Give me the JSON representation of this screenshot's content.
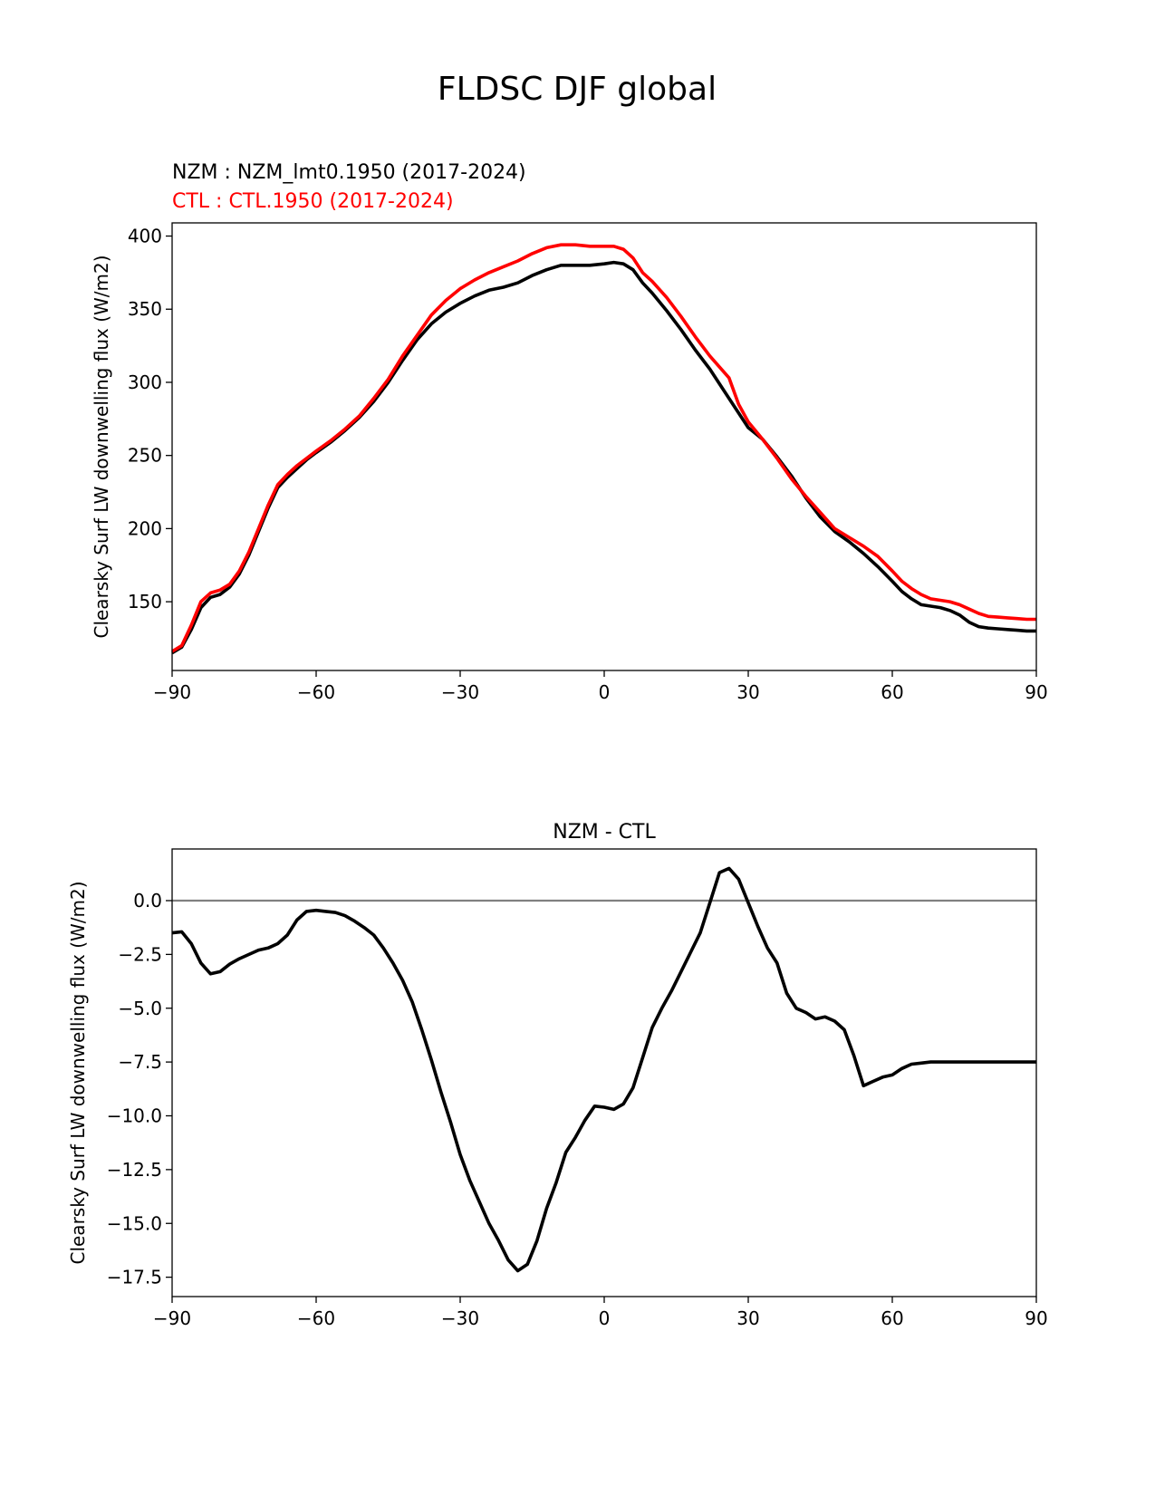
{
  "figure": {
    "suptitle": "FLDSC DJF global"
  },
  "chart_data": [
    {
      "type": "line",
      "title": "",
      "legend": [
        {
          "label": "NZM  : NZM_lmt0.1950 (2017-2024)",
          "color": "#000000"
        },
        {
          "label": "CTL : CTL.1950 (2017-2024)",
          "color": "#ff0000"
        }
      ],
      "xlabel": "",
      "ylabel": "Clearsky Surf LW downwelling flux (W/m2)",
      "xlim": [
        -90,
        90
      ],
      "ylim": [
        103,
        409
      ],
      "xticks": [
        -90,
        -60,
        -30,
        0,
        30,
        60,
        90
      ],
      "xtick_labels": [
        "−90",
        "−60",
        "−30",
        "0",
        "30",
        "60",
        "90"
      ],
      "yticks": [
        150,
        200,
        250,
        300,
        350,
        400
      ],
      "ytick_labels": [
        "150",
        "200",
        "250",
        "300",
        "350",
        "400"
      ],
      "grid": false,
      "series": [
        {
          "name": "NZM",
          "color": "#000000",
          "x": [
            -90,
            -88,
            -86,
            -84,
            -82,
            -80,
            -78,
            -76,
            -74,
            -72,
            -70,
            -68,
            -66,
            -64,
            -62,
            -60,
            -57,
            -54,
            -51,
            -48,
            -45,
            -42,
            -39,
            -36,
            -33,
            -30,
            -27,
            -24,
            -21,
            -18,
            -15,
            -12,
            -9,
            -6,
            -3,
            0,
            2,
            4,
            6,
            8,
            10,
            13,
            16,
            19,
            22,
            26,
            28,
            30,
            33,
            36,
            39,
            42,
            45,
            48,
            51,
            54,
            57,
            60,
            62,
            64,
            66,
            68,
            70,
            72,
            74,
            76,
            78,
            80,
            82,
            84,
            86,
            88,
            90
          ],
          "y": [
            115,
            119,
            131,
            146,
            153,
            155,
            160,
            169,
            182,
            198,
            214,
            228,
            235,
            241,
            247,
            252,
            259,
            267,
            276,
            287,
            300,
            315,
            329,
            340,
            348,
            354,
            359,
            363,
            365,
            368,
            373,
            377,
            380,
            380,
            380,
            381,
            382,
            381,
            377,
            368,
            361,
            349,
            336,
            322,
            309,
            289,
            279,
            269,
            261,
            249,
            236,
            221,
            208,
            198,
            191,
            183,
            174,
            164,
            157,
            152,
            148,
            147,
            146,
            144,
            141,
            136,
            133,
            132,
            131.5,
            131,
            130.5,
            130,
            130
          ]
        },
        {
          "name": "CTL",
          "color": "#ff0000",
          "x": [
            -90,
            -88,
            -86,
            -84,
            -82,
            -80,
            -78,
            -76,
            -74,
            -72,
            -70,
            -68,
            -66,
            -64,
            -62,
            -60,
            -57,
            -54,
            -51,
            -48,
            -45,
            -42,
            -39,
            -36,
            -33,
            -30,
            -27,
            -24,
            -21,
            -18,
            -15,
            -12,
            -9,
            -6,
            -3,
            0,
            2,
            4,
            6,
            8,
            10,
            13,
            16,
            19,
            22,
            26,
            28,
            30,
            33,
            36,
            39,
            42,
            45,
            48,
            51,
            54,
            57,
            60,
            62,
            64,
            66,
            68,
            70,
            72,
            74,
            76,
            78,
            80,
            82,
            84,
            86,
            88,
            90
          ],
          "y": [
            116,
            120,
            134,
            150,
            156,
            158,
            162,
            171,
            184,
            200,
            216,
            230,
            237,
            243,
            248,
            253,
            260,
            268,
            277,
            289,
            302,
            318,
            332,
            346,
            356,
            364,
            370,
            375,
            379,
            383,
            388,
            392,
            394,
            394,
            393,
            393,
            393,
            391,
            385,
            375,
            369,
            358,
            345,
            331,
            318,
            303,
            285,
            273,
            261,
            248,
            234,
            222,
            211,
            200,
            194,
            188,
            181,
            171,
            164,
            159,
            155,
            152,
            151,
            150,
            148,
            145,
            142,
            140,
            139.5,
            139,
            138.5,
            138,
            138
          ]
        }
      ]
    },
    {
      "type": "line",
      "title": "NZM - CTL",
      "xlabel": "",
      "ylabel": "Clearsky Surf LW downwelling flux (W/m2)",
      "xlim": [
        -90,
        90
      ],
      "ylim": [
        -18.4,
        2.4
      ],
      "xticks": [
        -90,
        -60,
        -30,
        0,
        30,
        60,
        90
      ],
      "xtick_labels": [
        "−90",
        "−60",
        "−30",
        "0",
        "30",
        "60",
        "90"
      ],
      "yticks": [
        -17.5,
        -15.0,
        -12.5,
        -10.0,
        -7.5,
        -5.0,
        -2.5,
        0.0
      ],
      "ytick_labels": [
        "−17.5",
        "−15.0",
        "−12.5",
        "−10.0",
        "−7.5",
        "−5.0",
        "−2.5",
        "0.0"
      ],
      "grid": false,
      "reference_line": {
        "y": 0,
        "color": "#808080"
      },
      "series": [
        {
          "name": "NZM - CTL",
          "color": "#000000",
          "x": [
            -90,
            -88,
            -86,
            -84,
            -82,
            -80,
            -78,
            -76,
            -74,
            -72,
            -70,
            -68,
            -66,
            -64,
            -62,
            -60,
            -58,
            -56,
            -54,
            -52,
            -50,
            -48,
            -46,
            -44,
            -42,
            -40,
            -38,
            -36,
            -34,
            -32,
            -30,
            -28,
            -26,
            -24,
            -22,
            -20,
            -18,
            -16,
            -14,
            -12,
            -10,
            -8,
            -6,
            -4,
            -2,
            0,
            2,
            4,
            6,
            8,
            10,
            12,
            14,
            16,
            18,
            20,
            22,
            24,
            26,
            28,
            30,
            32,
            34,
            36,
            38,
            40,
            42,
            44,
            46,
            48,
            50,
            52,
            54,
            56,
            58,
            60,
            62,
            64,
            66,
            68,
            70,
            72,
            74,
            76,
            78,
            80,
            82,
            84,
            86,
            88,
            90
          ],
          "y": [
            -1.5,
            -1.45,
            -2.0,
            -2.9,
            -3.4,
            -3.3,
            -2.95,
            -2.7,
            -2.5,
            -2.3,
            -2.2,
            -2.0,
            -1.6,
            -0.9,
            -0.5,
            -0.45,
            -0.5,
            -0.55,
            -0.7,
            -0.95,
            -1.25,
            -1.6,
            -2.2,
            -2.9,
            -3.7,
            -4.7,
            -6.0,
            -7.4,
            -8.9,
            -10.3,
            -11.8,
            -13.0,
            -14.0,
            -15.0,
            -15.8,
            -16.7,
            -17.2,
            -16.9,
            -15.8,
            -14.3,
            -13.1,
            -11.7,
            -11.0,
            -10.2,
            -9.55,
            -9.6,
            -9.7,
            -9.45,
            -8.7,
            -7.3,
            -5.9,
            -5.0,
            -4.2,
            -3.3,
            -2.4,
            -1.5,
            -0.1,
            1.3,
            1.5,
            1.0,
            -0.1,
            -1.2,
            -2.2,
            -2.9,
            -4.3,
            -5.0,
            -5.2,
            -5.5,
            -5.4,
            -5.6,
            -6.0,
            -7.2,
            -8.6,
            -8.4,
            -8.2,
            -8.1,
            -7.8,
            -7.6,
            -7.55,
            -7.5,
            -7.5,
            -7.5,
            -7.5,
            -7.5,
            -7.5,
            -7.5,
            -7.5,
            -7.5,
            -7.5,
            -7.5,
            -7.5
          ]
        }
      ]
    }
  ]
}
